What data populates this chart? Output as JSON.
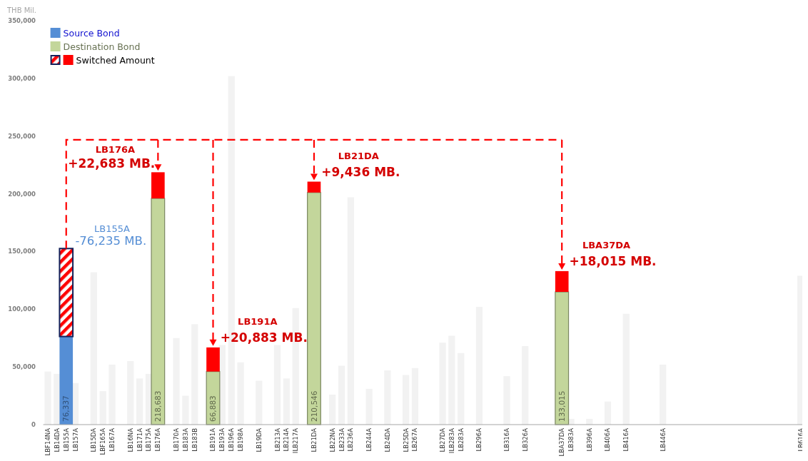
{
  "chart_data": {
    "type": "bar",
    "stacked": true,
    "ylabel": "THB Mil.",
    "ylim": [
      0,
      350000
    ],
    "yticks": [
      0,
      {
        "value": 50000,
        "label": "50,000"
      },
      {
        "value": 100000,
        "label": "100,000"
      },
      {
        "value": 150000,
        "label": "150,000"
      },
      {
        "value": 200000,
        "label": "200,000"
      },
      {
        "value": 250000,
        "label": "250,000"
      },
      {
        "value": 300000,
        "label": "300,000"
      },
      {
        "value": 350000,
        "label": "350,000"
      }
    ],
    "grid": false,
    "legend": "top left",
    "categories": [
      "LBF14NA",
      "LB14DA",
      "LB155A",
      "LB157A",
      null,
      "LB15DA",
      "LBF165A",
      "LB167A",
      null,
      "LB16NA",
      "LB171A",
      "LB175A",
      "LB176A",
      null,
      "LB170A",
      "LB183A",
      "LB183B",
      null,
      "LB191A",
      "LB193A",
      "LB196A",
      "LB198A",
      null,
      "LB19DA",
      null,
      "LB213A",
      "LB214A",
      "ILB217A",
      null,
      "LB21DA",
      null,
      "LB22NA",
      "LB233A",
      "LB236A",
      null,
      "LB244A",
      null,
      "LB24DA",
      null,
      "LB25DA",
      "LB267A",
      null,
      null,
      "LB27DA",
      "ILB283A",
      "LB283A",
      null,
      "LB296A",
      null,
      null,
      "LB316A",
      null,
      "LB326A",
      null,
      null,
      null,
      "LBA37DA",
      "LB383A",
      null,
      "LB396A",
      null,
      "LB406A",
      null,
      "LB416A",
      null,
      null,
      null,
      "LB446A",
      null,
      null,
      null,
      null,
      null,
      null,
      null,
      null,
      null,
      null,
      null,
      null,
      null,
      null,
      "LB616A"
    ],
    "series": [
      {
        "color": "#f2f2f2",
        "values": [
          46000,
          44000,
          null,
          36000,
          null,
          132000,
          29000,
          52000,
          null,
          55000,
          40000,
          44000,
          null,
          null,
          75000,
          25000,
          87000,
          null,
          null,
          69000,
          302000,
          54000,
          null,
          38000,
          null,
          69000,
          40000,
          101000,
          null,
          null,
          null,
          26000,
          51000,
          197000,
          null,
          31000,
          null,
          47000,
          null,
          43000,
          49000,
          null,
          null,
          71000,
          77000,
          62000,
          null,
          102000,
          null,
          null,
          42000,
          null,
          68000,
          null,
          null,
          null,
          null,
          5000,
          null,
          5000,
          null,
          20000,
          null,
          96000,
          null,
          null,
          null,
          52000,
          null,
          null,
          null,
          null,
          null,
          null,
          null,
          null,
          null,
          null,
          null,
          null,
          null,
          null,
          129000
        ]
      },
      {
        "name": "Source Bond",
        "color": "#558ed5",
        "values": [
          null,
          null,
          76337,
          null,
          null,
          null,
          null,
          null,
          null,
          null,
          null,
          null,
          null,
          null,
          null,
          null,
          null,
          null,
          null,
          null,
          null,
          null,
          null,
          null,
          null,
          null,
          null,
          null,
          null,
          null,
          null,
          null,
          null,
          null,
          null,
          null,
          null,
          null,
          null,
          null,
          null,
          null,
          null,
          null,
          null,
          null,
          null,
          null,
          null,
          null,
          null,
          null,
          null,
          null,
          null,
          null,
          null,
          null,
          null,
          null,
          null,
          null,
          null,
          null,
          null,
          null,
          null,
          null,
          null,
          null,
          null,
          null,
          null,
          null,
          null,
          null,
          null,
          null,
          null,
          null,
          null,
          null,
          null
        ],
        "value_labels": [
          null,
          null,
          "76,337",
          null,
          null,
          null,
          null,
          null,
          null,
          null,
          null,
          null,
          null,
          null,
          null,
          null,
          null,
          null,
          null,
          null,
          null,
          null,
          null,
          null,
          null,
          null,
          null,
          null,
          null,
          null,
          null,
          null,
          null,
          null,
          null,
          null,
          null,
          null,
          null,
          null,
          null,
          null,
          null,
          null,
          null,
          null,
          null,
          null,
          null,
          null,
          null,
          null,
          null,
          null,
          null,
          null,
          null,
          null,
          null,
          null,
          null,
          null,
          null,
          null,
          null,
          null,
          null,
          null,
          null,
          null,
          null,
          null,
          null,
          null,
          null,
          null,
          null,
          null,
          null,
          null,
          null,
          null,
          null
        ]
      },
      {
        "name": "Destination Bond",
        "color": "#c3d69b",
        "values": [
          null,
          null,
          null,
          null,
          null,
          null,
          null,
          null,
          null,
          null,
          null,
          null,
          196000,
          null,
          null,
          null,
          null,
          null,
          46000,
          null,
          null,
          null,
          null,
          null,
          null,
          null,
          null,
          null,
          null,
          201110,
          null,
          null,
          null,
          null,
          null,
          null,
          null,
          null,
          null,
          null,
          null,
          null,
          null,
          null,
          null,
          null,
          null,
          null,
          null,
          null,
          null,
          null,
          null,
          null,
          null,
          null,
          115000,
          null,
          null,
          null,
          null,
          null,
          null,
          null,
          null,
          null,
          null,
          null,
          null,
          null,
          null,
          null,
          null,
          null,
          null,
          null,
          null,
          null,
          null,
          null,
          null,
          null,
          null
        ]
      },
      {
        "name": "Switched Amount",
        "color": "#ff0000",
        "values": [
          null,
          null,
          76235,
          null,
          null,
          null,
          null,
          null,
          null,
          null,
          null,
          null,
          22683,
          null,
          null,
          null,
          null,
          null,
          20883,
          null,
          null,
          null,
          null,
          null,
          null,
          null,
          null,
          null,
          null,
          9436,
          null,
          null,
          null,
          null,
          null,
          null,
          null,
          null,
          null,
          null,
          null,
          null,
          null,
          null,
          null,
          null,
          null,
          null,
          null,
          null,
          null,
          null,
          null,
          null,
          null,
          null,
          18015,
          null,
          null,
          null,
          null,
          null,
          null,
          null,
          null,
          null,
          null,
          null,
          null,
          null,
          null,
          null,
          null,
          null,
          null,
          null,
          null,
          null,
          null,
          null,
          null,
          null,
          null
        ]
      }
    ],
    "totals": [
      null,
      null,
      null,
      null,
      null,
      null,
      null,
      null,
      null,
      null,
      null,
      null,
      "218,683",
      null,
      null,
      null,
      null,
      null,
      "66,883",
      null,
      null,
      null,
      null,
      null,
      null,
      null,
      null,
      null,
      null,
      "210,546",
      null,
      null,
      null,
      null,
      null,
      null,
      null,
      null,
      null,
      null,
      null,
      null,
      null,
      null,
      null,
      null,
      null,
      null,
      null,
      null,
      null,
      null,
      null,
      null,
      null,
      null,
      "133,015",
      null,
      null,
      null,
      null,
      null,
      null,
      null,
      null,
      null,
      null,
      null,
      null,
      null,
      null,
      null,
      null,
      null,
      null,
      null,
      null,
      null,
      null,
      null,
      null,
      null,
      null
    ],
    "annotations": [
      "LB155A",
      "-76,235 MB.",
      "LB176A",
      "+22,683 MB.",
      "LB191A",
      "+20,883 MB.",
      "LB21DA",
      "+9,436 MB.",
      "LBA37DA",
      "+18,015 MB."
    ]
  }
}
